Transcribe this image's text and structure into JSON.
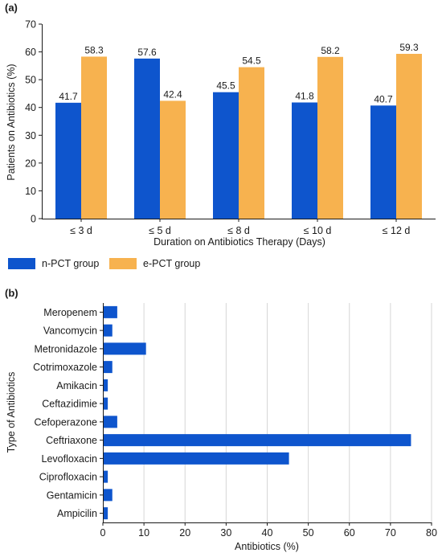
{
  "colors": {
    "n_pct": "#0e55cd",
    "e_pct": "#f7b24f",
    "bar_b": "#0e55cd"
  },
  "chart_data": [
    {
      "panel": "(a)",
      "type": "bar",
      "categories": [
        "≤ 3 d",
        "≤ 5 d",
        "≤ 8 d",
        "≤ 10 d",
        "≤ 12 d"
      ],
      "series": [
        {
          "name": "n-PCT group",
          "values": [
            41.7,
            57.6,
            45.5,
            41.8,
            40.7
          ],
          "labels": [
            "41.7",
            "57.6",
            "45.5",
            "41.8",
            "40.7"
          ]
        },
        {
          "name": "e-PCT group",
          "values": [
            58.3,
            42.4,
            54.5,
            58.2,
            59.3
          ],
          "labels": [
            "58.3",
            "42.4",
            "54.5",
            "58.2",
            "59.3"
          ]
        }
      ],
      "xlabel": "Duration on Antibiotics Therapy (Days)",
      "ylabel": "Patients on Antibiotics (%)",
      "ylim": [
        0,
        70
      ],
      "yticks": [
        "0",
        "10",
        "20",
        "30",
        "40",
        "50",
        "60",
        "70"
      ],
      "grid": false,
      "legend": "bottom"
    },
    {
      "panel": "(b)",
      "type": "bar",
      "orientation": "horizontal",
      "categories": [
        "Meropenem",
        "Vancomycin",
        "Metronidazole",
        "Cotrimoxazole",
        "Amikacin",
        "Ceftazidimie",
        "Cefoperazone",
        "Ceftriaxone",
        "Levofloxacin",
        "Ciprofloxacin",
        "Gentamicin",
        "Ampicilin"
      ],
      "values": [
        3.5,
        2.3,
        10.5,
        2.3,
        1.2,
        1.2,
        3.5,
        75.0,
        45.3,
        1.2,
        2.3,
        1.2
      ],
      "xlabel": "Antibiotics (%)",
      "ylabel": "Type of Antibiotics",
      "xlim": [
        0,
        80
      ],
      "xticks": [
        "0",
        "10",
        "20",
        "30",
        "40",
        "50",
        "60",
        "70",
        "80"
      ],
      "grid": true
    }
  ]
}
